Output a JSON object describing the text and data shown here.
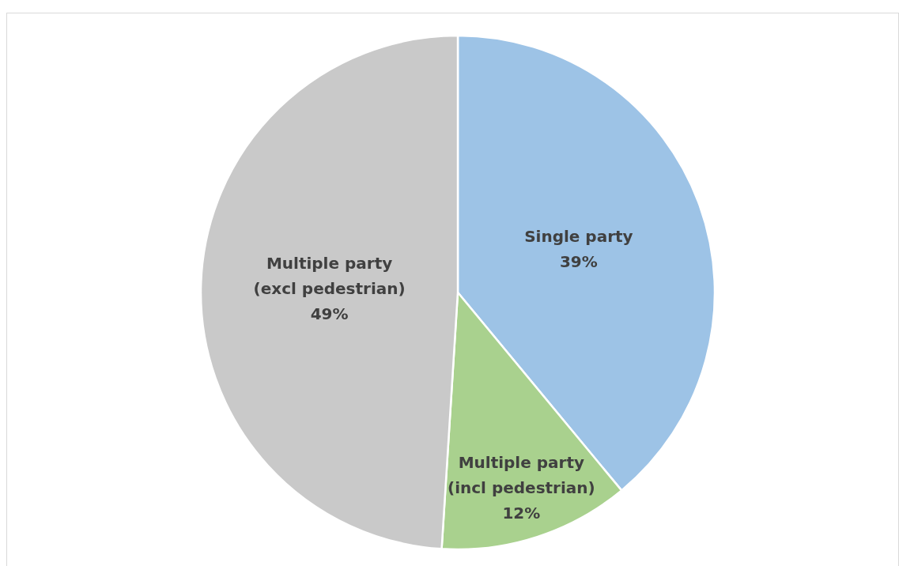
{
  "chart_data": {
    "type": "pie",
    "categories": [
      "Single party",
      "Multiple party\n(incl pedestrian)",
      "Multiple party\n(excl pedestrian)"
    ],
    "values": [
      39,
      12,
      49
    ],
    "colors": [
      "#9dc3e6",
      "#a9d18e",
      "#c9c9c9"
    ],
    "value_labels": [
      "39%",
      "12%",
      "49%"
    ]
  }
}
